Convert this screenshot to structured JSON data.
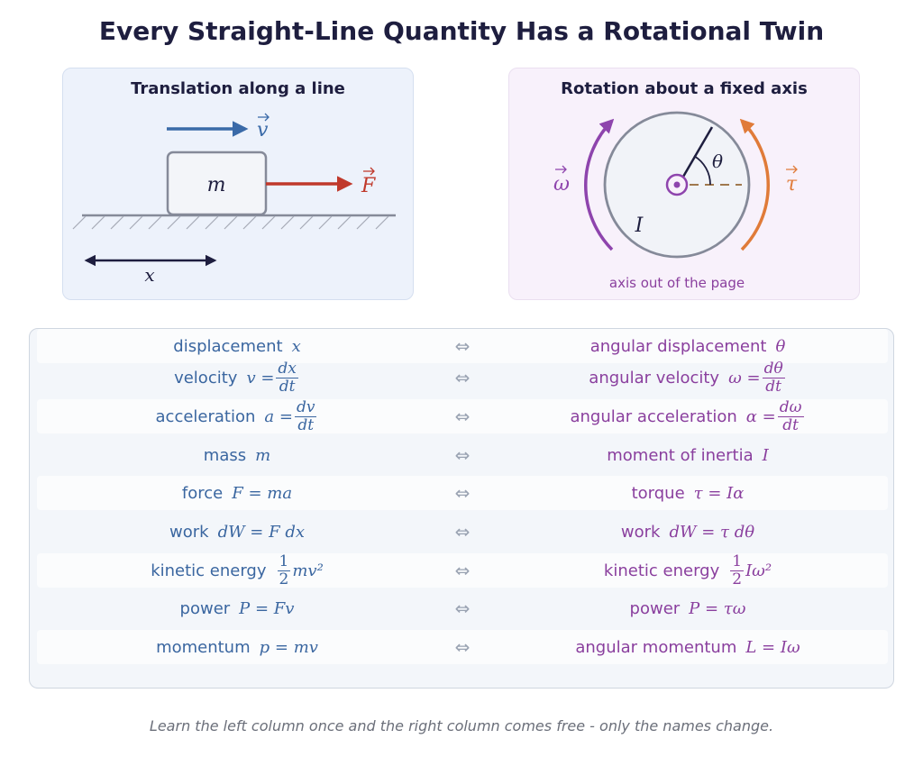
{
  "title": "Every Straight-Line Quantity Has a Rotational Twin",
  "left_panel": {
    "title": "Translation along a line",
    "velocity_label": "v",
    "mass_label": "m",
    "force_label": "F",
    "position_label": "x"
  },
  "right_panel": {
    "title": "Rotation about a fixed axis",
    "omega_label": "ω",
    "tau_label": "τ",
    "theta_label": "θ",
    "inertia_label": "I",
    "caption": "axis out of the page"
  },
  "pairs": [
    {
      "lin_name": "displacement",
      "lin_eq": "x",
      "rot_name": "angular displacement",
      "rot_eq": "θ"
    },
    {
      "lin_name": "velocity",
      "lin_pre": "v =",
      "lin_num": "dx",
      "lin_den": "dt",
      "rot_name": "angular velocity",
      "rot_pre": "ω =",
      "rot_num": "dθ",
      "rot_den": "dt"
    },
    {
      "lin_name": "acceleration",
      "lin_pre": "a =",
      "lin_num": "dv",
      "lin_den": "dt",
      "rot_name": "angular acceleration",
      "rot_pre": "α =",
      "rot_num": "dω",
      "rot_den": "dt"
    },
    {
      "lin_name": "mass",
      "lin_eq": "m",
      "rot_name": "moment of inertia",
      "rot_eq": "I"
    },
    {
      "lin_name": "force",
      "lin_eq": "F = ma",
      "rot_name": "torque",
      "rot_eq": "τ = Iα"
    },
    {
      "lin_name": "work",
      "lin_eq": "dW = F dx",
      "rot_name": "work",
      "rot_eq": "dW = τ dθ"
    },
    {
      "lin_name": "kinetic energy",
      "lin_num": "1",
      "lin_den": "2",
      "lin_post": "mv²",
      "rot_name": "kinetic energy",
      "rot_num": "1",
      "rot_den": "2",
      "rot_post": "Iω²"
    },
    {
      "lin_name": "power",
      "lin_eq": "P = Fv",
      "rot_name": "power",
      "rot_eq": "P = τω"
    },
    {
      "lin_name": "momentum",
      "lin_eq": "p = mv",
      "rot_name": "angular momentum",
      "rot_eq": "L = Iω"
    }
  ],
  "arrow_symbol": "⇔",
  "footer": "Learn the left column once and the right column comes free - only the names change.",
  "colors": {
    "linear": "#3a66a0",
    "rotational": "#8a3f9e",
    "force": "#c0392b",
    "torque": "#e07b39",
    "dark": "#1e1e3f",
    "gray": "#858a99"
  }
}
